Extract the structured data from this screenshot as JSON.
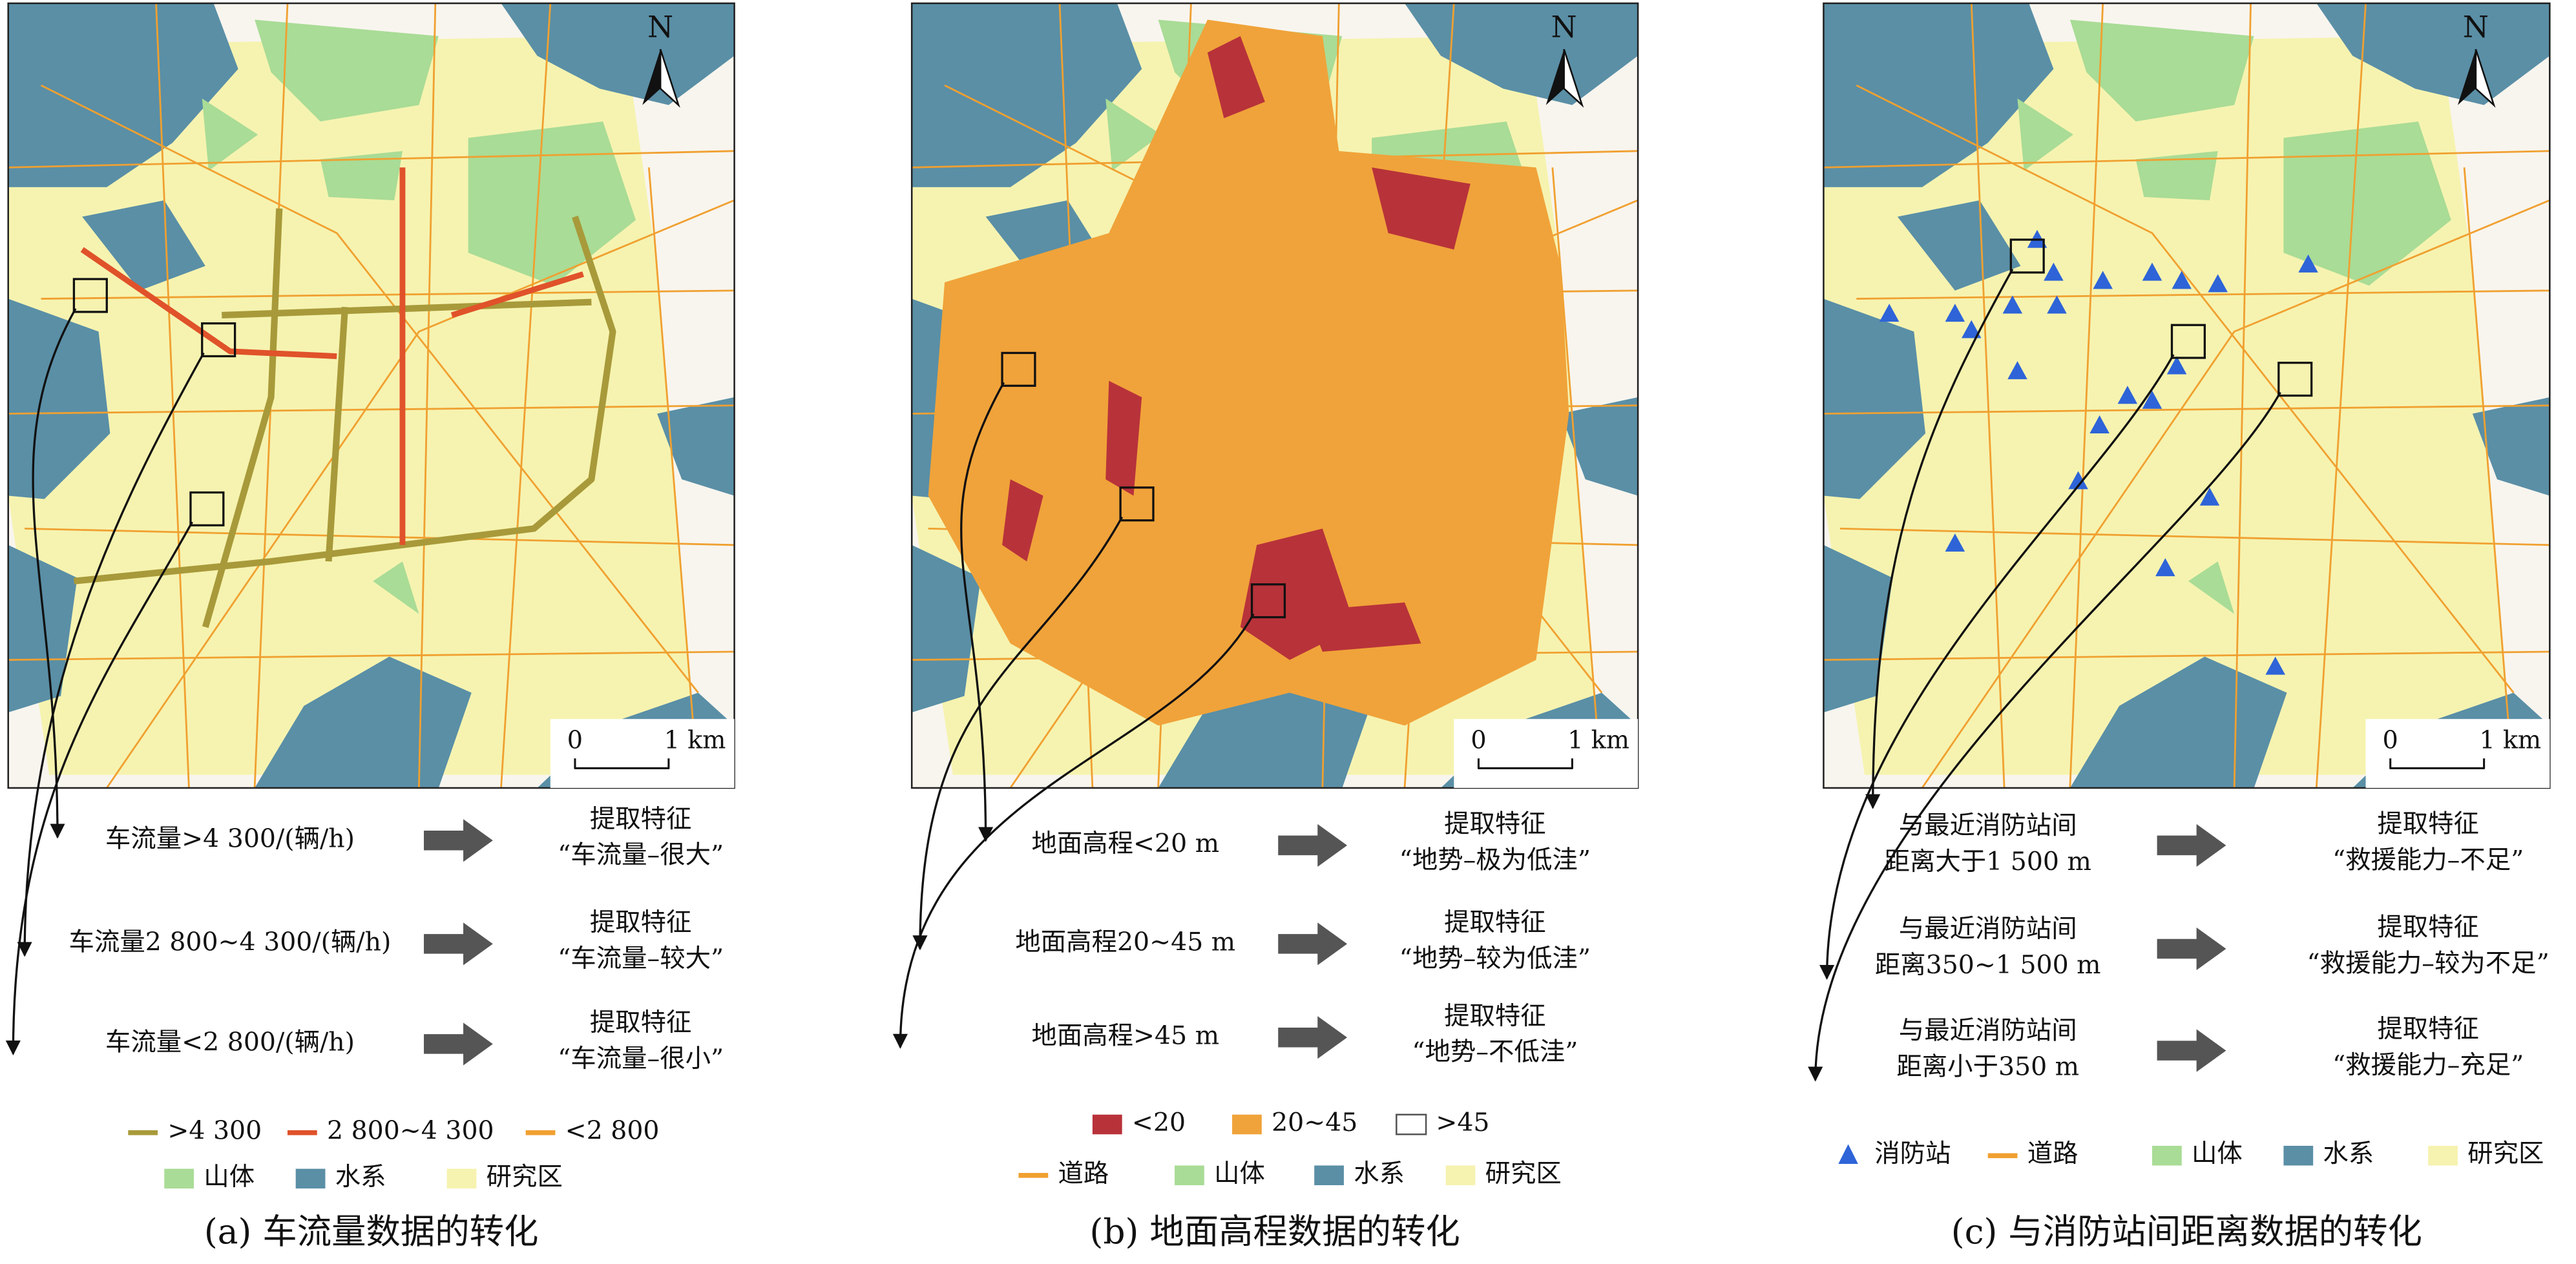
{
  "panels": [
    {
      "map": {
        "north": "N",
        "scale": [
          "0",
          "1 km"
        ]
      },
      "rules": [
        {
          "condition": [
            "车流量>4 300/(辆/h)"
          ],
          "label": "提取特征",
          "feature": "“车流量–很大”"
        },
        {
          "condition": [
            "车流量2 800~4 300/(辆/h)"
          ],
          "label": "提取特征",
          "feature": "“车流量–较大”"
        },
        {
          "condition": [
            "车流量<2 800/(辆/h)"
          ],
          "label": "提取特征",
          "feature": "“车流量–很小”"
        }
      ],
      "legend": [
        {
          "label": ">4 300",
          "symbol": "line",
          "color": "#a89a3a"
        },
        {
          "label": "2 800~4 300",
          "symbol": "line",
          "color": "#e0522a"
        },
        {
          "label": "<2 800",
          "symbol": "line",
          "color": "#f0a030"
        },
        {
          "label": "山体",
          "symbol": "rect",
          "color": "#a9dc96"
        },
        {
          "label": "水系",
          "symbol": "rect",
          "color": "#5a8fa6"
        },
        {
          "label": "研究区",
          "symbol": "rect",
          "color": "#f6f3b0"
        }
      ],
      "caption": "(a) 车流量数据的转化"
    },
    {
      "map": {
        "north": "N",
        "scale": [
          "0",
          "1 km"
        ]
      },
      "rules": [
        {
          "condition": [
            "地面高程<20 m"
          ],
          "label": "提取特征",
          "feature": "“地势–极为低洼”"
        },
        {
          "condition": [
            "地面高程20~45 m"
          ],
          "label": "提取特征",
          "feature": "“地势–较为低洼”"
        },
        {
          "condition": [
            "地面高程>45 m"
          ],
          "label": "提取特征",
          "feature": "“地势–不低洼”"
        }
      ],
      "legend": [
        {
          "label": "<20",
          "symbol": "rect",
          "color": "#b8323a"
        },
        {
          "label": "20~45",
          "symbol": "rect",
          "color": "#f0a33a"
        },
        {
          "label": ">45",
          "symbol": "rect",
          "color": "#ffffff"
        },
        {
          "label": "道路",
          "symbol": "line",
          "color": "#f0a030"
        },
        {
          "label": "山体",
          "symbol": "rect",
          "color": "#a9dc96"
        },
        {
          "label": "水系",
          "symbol": "rect",
          "color": "#5a8fa6"
        },
        {
          "label": "研究区",
          "symbol": "rect",
          "color": "#f6f3b0"
        }
      ],
      "caption": "(b) 地面高程数据的转化"
    },
    {
      "map": {
        "north": "N",
        "scale": [
          "0",
          "1 km"
        ]
      },
      "rules": [
        {
          "condition": [
            "与最近消防站间",
            "距离大于1 500 m"
          ],
          "label": "提取特征",
          "feature": "“救援能力–不足”"
        },
        {
          "condition": [
            "与最近消防站间",
            "距离350~1 500 m"
          ],
          "label": "提取特征",
          "feature": "“救援能力–较为不足”"
        },
        {
          "condition": [
            "与最近消防站间",
            "距离小于350 m"
          ],
          "label": "提取特征",
          "feature": "“救援能力–充足”"
        }
      ],
      "legend": [
        {
          "label": "消防站",
          "symbol": "triangle",
          "color": "#2e64d8"
        },
        {
          "label": "道路",
          "symbol": "line",
          "color": "#f0a030"
        },
        {
          "label": "山体",
          "symbol": "rect",
          "color": "#a9dc96"
        },
        {
          "label": "水系",
          "symbol": "rect",
          "color": "#5a8fa6"
        },
        {
          "label": "研究区",
          "symbol": "rect",
          "color": "#f6f3b0"
        }
      ],
      "caption": "(c) 与消防站间距离数据的转化"
    }
  ]
}
